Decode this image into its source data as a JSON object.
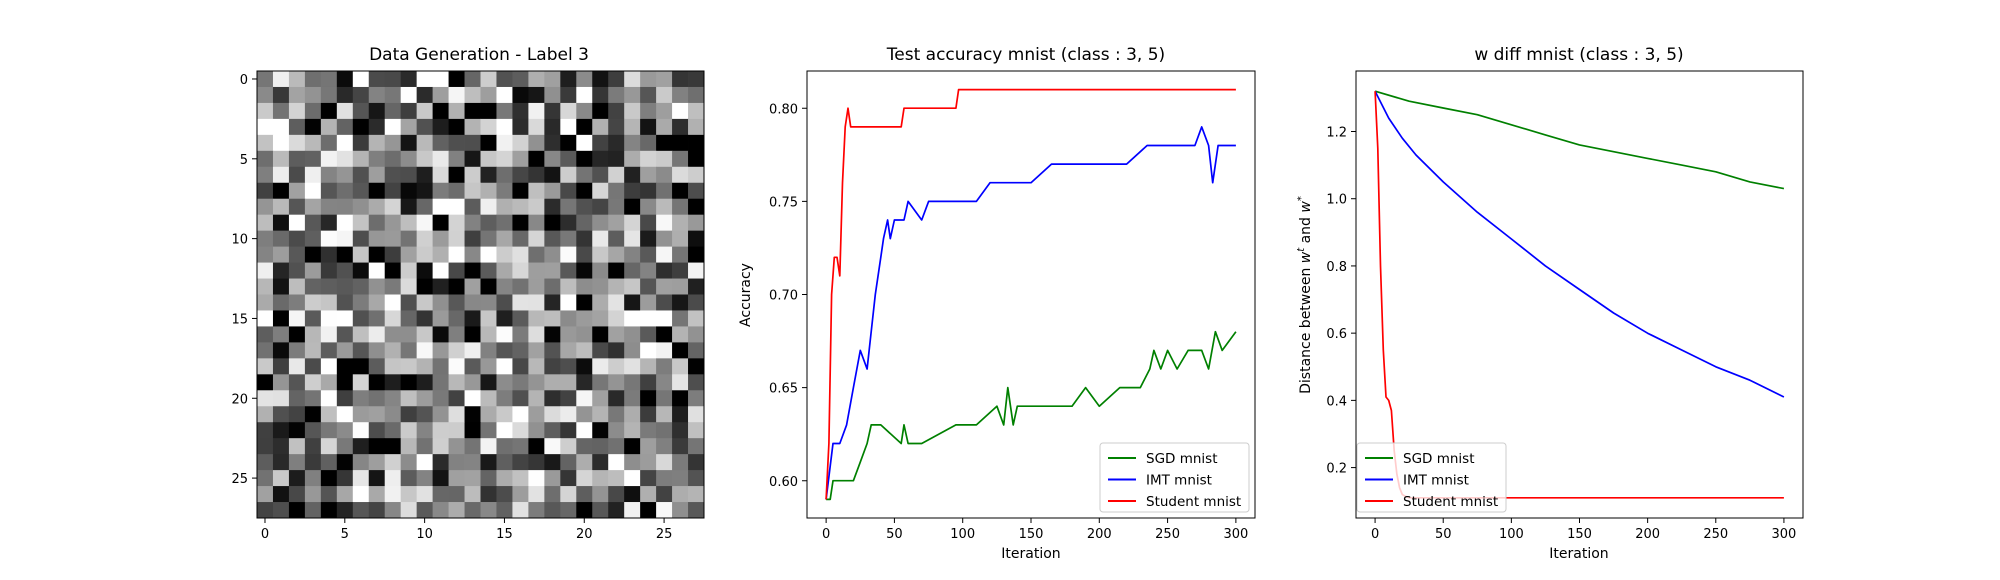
{
  "chart_data": [
    {
      "type": "heatmap",
      "title": "Data Generation - Label 3",
      "x_ticks": [
        "0",
        "5",
        "10",
        "15",
        "20",
        "25"
      ],
      "y_ticks": [
        "0",
        "5",
        "10",
        "15",
        "20",
        "25"
      ],
      "rows": 28,
      "cols": 28,
      "value_range": [
        0,
        1
      ],
      "colormap": "gray",
      "note_values": "random-noise grayscale pixel grid"
    },
    {
      "type": "line",
      "title": "Test accuracy mnist (class : 3, 5)",
      "xlabel": "Iteration",
      "ylabel": "Accuracy",
      "xlim": [
        -14,
        314
      ],
      "ylim": [
        0.58,
        0.82
      ],
      "x_ticks": [
        "0",
        "50",
        "100",
        "150",
        "200",
        "250",
        "300"
      ],
      "y_ticks": [
        "0.60",
        "0.65",
        "0.70",
        "0.75",
        "0.80"
      ],
      "legend_position": "bottom-right",
      "series": [
        {
          "name": "SGD mnist",
          "color": "#008000",
          "x": [
            0,
            3,
            5,
            20,
            25,
            30,
            33,
            36,
            40,
            55,
            57,
            60,
            70,
            95,
            100,
            110,
            125,
            130,
            133,
            137,
            140,
            160,
            180,
            190,
            200,
            215,
            225,
            230,
            237,
            240,
            245,
            250,
            257,
            265,
            275,
            280,
            285,
            290,
            300
          ],
          "values": [
            0.59,
            0.59,
            0.6,
            0.6,
            0.61,
            0.62,
            0.63,
            0.63,
            0.63,
            0.62,
            0.63,
            0.62,
            0.62,
            0.63,
            0.63,
            0.63,
            0.64,
            0.63,
            0.65,
            0.63,
            0.64,
            0.64,
            0.64,
            0.65,
            0.64,
            0.65,
            0.65,
            0.65,
            0.66,
            0.67,
            0.66,
            0.67,
            0.66,
            0.67,
            0.67,
            0.66,
            0.68,
            0.67,
            0.68
          ]
        },
        {
          "name": "IMT mnist",
          "color": "#0000ff",
          "x": [
            0,
            5,
            10,
            15,
            20,
            25,
            30,
            33,
            36,
            40,
            42,
            45,
            47,
            50,
            57,
            60,
            70,
            75,
            90,
            95,
            100,
            110,
            120,
            130,
            150,
            165,
            180,
            200,
            220,
            235,
            240,
            250,
            260,
            270,
            275,
            280,
            283,
            287,
            290,
            300
          ],
          "values": [
            0.59,
            0.62,
            0.62,
            0.63,
            0.65,
            0.67,
            0.66,
            0.68,
            0.7,
            0.72,
            0.73,
            0.74,
            0.73,
            0.74,
            0.74,
            0.75,
            0.74,
            0.75,
            0.75,
            0.75,
            0.75,
            0.75,
            0.76,
            0.76,
            0.76,
            0.77,
            0.77,
            0.77,
            0.77,
            0.78,
            0.78,
            0.78,
            0.78,
            0.78,
            0.79,
            0.78,
            0.76,
            0.78,
            0.78,
            0.78
          ]
        },
        {
          "name": "Student mnist",
          "color": "#ff0000",
          "x": [
            0,
            2,
            4,
            6,
            8,
            10,
            12,
            14,
            16,
            18,
            20,
            30,
            40,
            55,
            57,
            60,
            80,
            95,
            97,
            100,
            150,
            200,
            250,
            300
          ],
          "values": [
            0.59,
            0.62,
            0.7,
            0.72,
            0.72,
            0.71,
            0.76,
            0.79,
            0.8,
            0.79,
            0.79,
            0.79,
            0.79,
            0.79,
            0.8,
            0.8,
            0.8,
            0.8,
            0.81,
            0.81,
            0.81,
            0.81,
            0.81,
            0.81
          ]
        }
      ]
    },
    {
      "type": "line",
      "title": "w diff mnist (class : 3, 5)",
      "xlabel": "Iteration",
      "ylabel_parts": [
        "Distance between ",
        "w",
        "t",
        " and ",
        "w",
        "*"
      ],
      "xlim": [
        -14,
        314
      ],
      "ylim": [
        0.05,
        1.38
      ],
      "x_ticks": [
        "0",
        "50",
        "100",
        "150",
        "200",
        "250",
        "300"
      ],
      "y_ticks": [
        "0.2",
        "0.4",
        "0.6",
        "0.8",
        "1.0",
        "1.2"
      ],
      "legend_position": "bottom-left",
      "series": [
        {
          "name": "SGD mnist",
          "color": "#008000",
          "x": [
            0,
            25,
            50,
            75,
            100,
            125,
            150,
            175,
            200,
            225,
            250,
            275,
            300
          ],
          "values": [
            1.32,
            1.29,
            1.27,
            1.25,
            1.22,
            1.19,
            1.16,
            1.14,
            1.12,
            1.1,
            1.08,
            1.05,
            1.03
          ]
        },
        {
          "name": "IMT mnist",
          "color": "#0000ff",
          "x": [
            0,
            10,
            20,
            30,
            50,
            75,
            100,
            125,
            150,
            175,
            200,
            225,
            250,
            275,
            300
          ],
          "values": [
            1.32,
            1.24,
            1.18,
            1.13,
            1.05,
            0.96,
            0.88,
            0.8,
            0.73,
            0.66,
            0.6,
            0.55,
            0.5,
            0.46,
            0.41
          ]
        },
        {
          "name": "Student mnist",
          "color": "#ff0000",
          "x": [
            0,
            2,
            4,
            6,
            8,
            10,
            12,
            14,
            16,
            18,
            20,
            22,
            25,
            30,
            50,
            100,
            150,
            200,
            250,
            300
          ],
          "values": [
            1.32,
            1.15,
            0.8,
            0.55,
            0.41,
            0.4,
            0.37,
            0.25,
            0.18,
            0.14,
            0.12,
            0.115,
            0.11,
            0.11,
            0.11,
            0.11,
            0.11,
            0.11,
            0.11,
            0.11
          ]
        }
      ]
    }
  ]
}
